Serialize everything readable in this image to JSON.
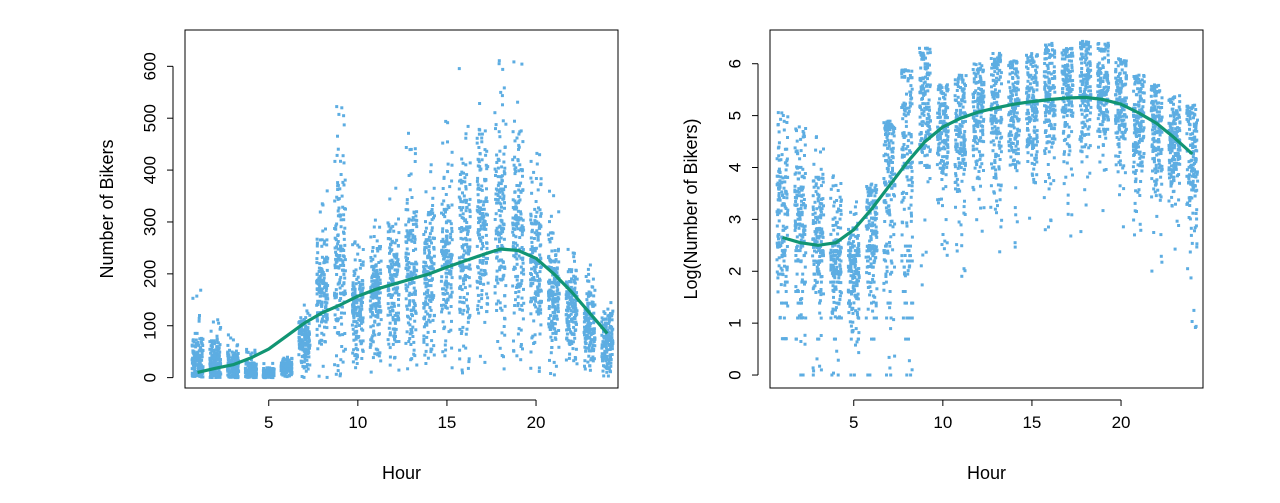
{
  "chart_data": [
    {
      "type": "scatter",
      "title": "",
      "xlabel": "Hour",
      "ylabel": "Number of Bikers",
      "xlim": [
        0.3,
        24.6
      ],
      "ylim": [
        -20,
        670
      ],
      "xticks": [
        5,
        10,
        15,
        20
      ],
      "yticks": [
        0,
        100,
        200,
        300,
        400,
        500,
        600
      ],
      "grid": false,
      "point_color": "#5DADE2",
      "line_color": "#119573",
      "scatter_summary": [
        {
          "hour": 1,
          "low": 0,
          "high": 170,
          "center": 30
        },
        {
          "hour": 2,
          "low": 0,
          "high": 115,
          "center": 25
        },
        {
          "hour": 3,
          "low": 0,
          "high": 100,
          "center": 20
        },
        {
          "hour": 4,
          "low": 0,
          "high": 55,
          "center": 12
        },
        {
          "hour": 5,
          "low": 0,
          "high": 30,
          "center": 8
        },
        {
          "hour": 6,
          "low": 0,
          "high": 40,
          "center": 20
        },
        {
          "hour": 7,
          "low": 0,
          "high": 140,
          "center": 70
        },
        {
          "hour": 8,
          "low": 0,
          "high": 370,
          "center": 160
        },
        {
          "hour": 9,
          "low": 0,
          "high": 560,
          "center": 230
        },
        {
          "hour": 10,
          "low": 10,
          "high": 280,
          "center": 130
        },
        {
          "hour": 11,
          "low": 5,
          "high": 330,
          "center": 150
        },
        {
          "hour": 12,
          "low": 10,
          "high": 390,
          "center": 180
        },
        {
          "hour": 13,
          "low": 10,
          "high": 490,
          "center": 200
        },
        {
          "hour": 14,
          "low": 5,
          "high": 440,
          "center": 200
        },
        {
          "hour": 15,
          "low": 5,
          "high": 500,
          "center": 210
        },
        {
          "hour": 16,
          "low": 5,
          "high": 600,
          "center": 240
        },
        {
          "hour": 17,
          "low": 10,
          "high": 560,
          "center": 280
        },
        {
          "hour": 18,
          "low": 10,
          "high": 640,
          "center": 300
        },
        {
          "hour": 19,
          "low": 10,
          "high": 610,
          "center": 280
        },
        {
          "hour": 20,
          "low": 5,
          "high": 460,
          "center": 200
        },
        {
          "hour": 21,
          "low": 5,
          "high": 360,
          "center": 160
        },
        {
          "hour": 22,
          "low": 5,
          "high": 270,
          "center": 130
        },
        {
          "hour": 23,
          "low": 5,
          "high": 230,
          "center": 100
        },
        {
          "hour": 24,
          "low": 0,
          "high": 180,
          "center": 70
        }
      ],
      "smooth_line": {
        "x": [
          1,
          2,
          3,
          4,
          5,
          6,
          7,
          8,
          9,
          10,
          11,
          12,
          13,
          14,
          15,
          16,
          17,
          18,
          19,
          20,
          21,
          22,
          23,
          24
        ],
        "y": [
          10,
          18,
          25,
          38,
          55,
          80,
          105,
          125,
          140,
          157,
          170,
          180,
          190,
          200,
          213,
          225,
          237,
          248,
          245,
          230,
          200,
          165,
          125,
          85
        ]
      }
    },
    {
      "type": "scatter",
      "title": "",
      "xlabel": "Hour",
      "ylabel": "Log(Number of Bikers)",
      "xlim": [
        0.3,
        24.6
      ],
      "ylim": [
        -0.25,
        6.65
      ],
      "xticks": [
        5,
        10,
        15,
        20
      ],
      "yticks": [
        0,
        1,
        2,
        3,
        4,
        5,
        6
      ],
      "grid": false,
      "point_color": "#5DADE2",
      "line_color": "#119573",
      "scatter_summary": [
        {
          "hour": 1,
          "low": 0.7,
          "high": 5.2,
          "center": 3.3
        },
        {
          "hour": 2,
          "low": 0,
          "high": 4.8,
          "center": 3.1
        },
        {
          "hour": 3,
          "low": 0,
          "high": 4.6,
          "center": 2.9
        },
        {
          "hour": 4,
          "low": 0,
          "high": 3.9,
          "center": 2.4
        },
        {
          "hour": 5,
          "low": 0,
          "high": 3.4,
          "center": 1.9
        },
        {
          "hour": 6,
          "low": 0,
          "high": 3.7,
          "center": 2.8
        },
        {
          "hour": 7,
          "low": 0,
          "high": 4.9,
          "center": 3.9
        },
        {
          "hour": 8,
          "low": 0,
          "high": 5.9,
          "center": 4.7
        },
        {
          "hour": 9,
          "low": 1.6,
          "high": 6.3,
          "center": 5.2
        },
        {
          "hour": 10,
          "low": 2.3,
          "high": 5.6,
          "center": 4.7
        },
        {
          "hour": 11,
          "low": 1.9,
          "high": 5.8,
          "center": 4.8
        },
        {
          "hour": 12,
          "low": 2.3,
          "high": 6.0,
          "center": 5.0
        },
        {
          "hour": 13,
          "low": 1.1,
          "high": 6.2,
          "center": 5.1
        },
        {
          "hour": 14,
          "low": 2.4,
          "high": 6.1,
          "center": 5.1
        },
        {
          "hour": 15,
          "low": 2.6,
          "high": 6.2,
          "center": 5.2
        },
        {
          "hour": 16,
          "low": 1.9,
          "high": 6.4,
          "center": 5.3
        },
        {
          "hour": 17,
          "low": 2.6,
          "high": 6.3,
          "center": 5.5
        },
        {
          "hour": 18,
          "low": 2.7,
          "high": 6.45,
          "center": 5.6
        },
        {
          "hour": 19,
          "low": 3.0,
          "high": 6.4,
          "center": 5.5
        },
        {
          "hour": 20,
          "low": 2.6,
          "high": 6.1,
          "center": 5.2
        },
        {
          "hour": 21,
          "low": 2.4,
          "high": 5.8,
          "center": 4.9
        },
        {
          "hour": 22,
          "low": 1.9,
          "high": 5.6,
          "center": 4.7
        },
        {
          "hour": 23,
          "low": 2.2,
          "high": 5.4,
          "center": 4.5
        },
        {
          "hour": 24,
          "low": 0.7,
          "high": 5.2,
          "center": 4.2
        }
      ],
      "smooth_line": {
        "x": [
          1,
          2,
          3,
          4,
          5,
          6,
          7,
          8,
          9,
          10,
          11,
          12,
          13,
          14,
          15,
          16,
          17,
          18,
          19,
          20,
          21,
          22,
          23,
          24
        ],
        "y": [
          2.65,
          2.55,
          2.5,
          2.55,
          2.8,
          3.2,
          3.65,
          4.1,
          4.5,
          4.78,
          4.95,
          5.07,
          5.15,
          5.22,
          5.27,
          5.31,
          5.34,
          5.35,
          5.31,
          5.22,
          5.05,
          4.85,
          4.57,
          4.26
        ]
      }
    }
  ]
}
